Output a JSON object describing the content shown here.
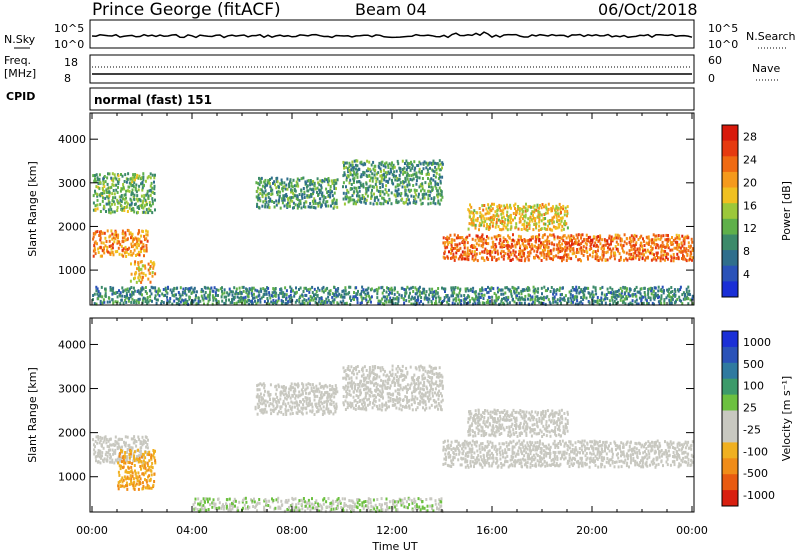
{
  "header": {
    "station": "Prince George (fitACF)",
    "beam": "Beam 04",
    "date": "06/Oct/2018"
  },
  "noise_panel": {
    "left_label": "N.Sky",
    "right_label": "N.Search",
    "tick_top": "10^5",
    "tick_bottom": "10^0"
  },
  "freq_panel": {
    "label_line1": "Freq.",
    "label_line2": "[MHz]",
    "left_tick_top": "18",
    "left_tick_bottom": "8",
    "right_tick_top": "60",
    "right_tick_bottom": "0",
    "right_label": "Nave"
  },
  "cpid_panel": {
    "label": "CPID",
    "value": "normal (fast) 151"
  },
  "colors": {
    "ground_scatter": "#c8c8c0",
    "power_scale": [
      "#1a2fd6",
      "#2a52b8",
      "#2f6e8c",
      "#3c8a6a",
      "#5fb04a",
      "#9cc83a",
      "#f0c020",
      "#f59a1c",
      "#ef6a12",
      "#e63a10",
      "#d81a0c"
    ],
    "velocity_scale": [
      "#1a2fd6",
      "#2a52b8",
      "#2f7aa0",
      "#3c9a6a",
      "#6cc040",
      "#c8c8c0",
      "#c8c8c0",
      "#f0b020",
      "#f08c18",
      "#e85a10",
      "#d82010"
    ]
  },
  "chart_data": [
    {
      "type": "heatmap",
      "title": "Power",
      "xlabel": "",
      "ylabel": "Slant Range [km]",
      "x_ticks": [
        "00:00",
        "04:00",
        "08:00",
        "12:00",
        "16:00",
        "20:00",
        "00:00"
      ],
      "y_ticks": [
        "1000",
        "2000",
        "3000",
        "4000"
      ],
      "ylim": [
        200,
        4600
      ],
      "colorbar": {
        "label": "Power [dB]",
        "ticks": [
          "4",
          "8",
          "12",
          "16",
          "20",
          "24",
          "28"
        ],
        "range": [
          0,
          30
        ]
      },
      "echo_bands": [
        {
          "t_start": 0.0,
          "t_end": 2.2,
          "range_km": [
            1300,
            1900
          ],
          "power_db": 22
        },
        {
          "t_start": 1.5,
          "t_end": 2.5,
          "range_km": [
            700,
            1200
          ],
          "power_db": 20
        },
        {
          "t_start": 0.0,
          "t_end": 2.5,
          "range_km": [
            2300,
            3200
          ],
          "power_db": 12
        },
        {
          "t_start": 6.5,
          "t_end": 9.8,
          "range_km": [
            2400,
            3100
          ],
          "power_db": 10
        },
        {
          "t_start": 10.0,
          "t_end": 14.0,
          "range_km": [
            2500,
            3500
          ],
          "power_db": 10
        },
        {
          "t_start": 14.0,
          "t_end": 24.0,
          "range_km": [
            1200,
            1800
          ],
          "power_db": 24
        },
        {
          "t_start": 15.0,
          "t_end": 19.0,
          "range_km": [
            1900,
            2500
          ],
          "power_db": 18
        },
        {
          "t_start": 0.0,
          "t_end": 24.0,
          "range_km": [
            200,
            600
          ],
          "power_db": 8
        }
      ]
    },
    {
      "type": "heatmap",
      "title": "Velocity",
      "xlabel": "Time UT",
      "ylabel": "Slant Range [km]",
      "x_ticks": [
        "00:00",
        "04:00",
        "08:00",
        "12:00",
        "16:00",
        "20:00",
        "00:00"
      ],
      "y_ticks": [
        "1000",
        "2000",
        "3000",
        "4000"
      ],
      "ylim": [
        200,
        4600
      ],
      "colorbar": {
        "label": "Velocity [m s⁻¹]",
        "ticks": [
          "1000",
          "500",
          "100",
          "25",
          "-25",
          "-100",
          "-500",
          "-1000"
        ],
        "range": [
          -1000,
          1000
        ]
      },
      "echo_bands": [
        {
          "t_start": 0.0,
          "t_end": 2.2,
          "range_km": [
            1300,
            1900
          ],
          "velocity": 0
        },
        {
          "t_start": 1.0,
          "t_end": 2.5,
          "range_km": [
            700,
            1600
          ],
          "velocity": -450
        },
        {
          "t_start": 6.5,
          "t_end": 9.8,
          "range_km": [
            2400,
            3100
          ],
          "velocity": 0
        },
        {
          "t_start": 10.0,
          "t_end": 14.0,
          "range_km": [
            2500,
            3500
          ],
          "velocity": 0
        },
        {
          "t_start": 14.0,
          "t_end": 24.0,
          "range_km": [
            1200,
            1800
          ],
          "velocity": 0
        },
        {
          "t_start": 15.0,
          "t_end": 19.0,
          "range_km": [
            1900,
            2500
          ],
          "velocity": 0
        },
        {
          "t_start": 4.0,
          "t_end": 14.0,
          "range_km": [
            200,
            500
          ],
          "velocity": 60
        }
      ]
    }
  ]
}
